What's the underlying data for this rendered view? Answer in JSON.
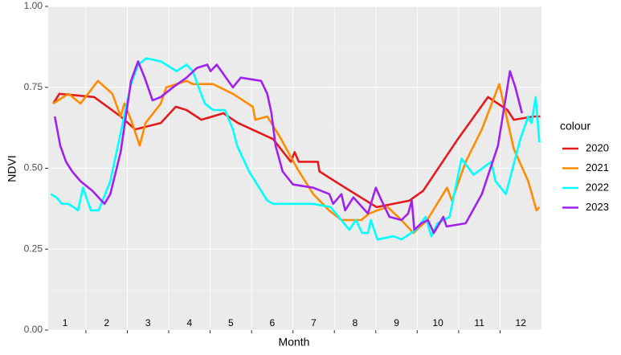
{
  "chart_data": {
    "type": "line",
    "x_label": "Month",
    "y_label": "NDVI",
    "legend_title": "colour",
    "legend": "right",
    "grid": true,
    "xlim": [
      0.59,
      12.5
    ],
    "ylim": [
      0,
      1
    ],
    "yticks": [
      {
        "value": 0,
        "label": "0.00"
      },
      {
        "value": 0.25,
        "label": "0.25"
      },
      {
        "value": 0.5,
        "label": "0.50"
      },
      {
        "value": 0.75,
        "label": "0.75"
      },
      {
        "value": 1,
        "label": "1.00"
      }
    ],
    "month_labels": [
      {
        "value": 1,
        "label": "1"
      },
      {
        "value": 2,
        "label": "2"
      },
      {
        "value": 3,
        "label": "3"
      },
      {
        "value": 4,
        "label": "4"
      },
      {
        "value": 5,
        "label": "5"
      },
      {
        "value": 6,
        "label": "6"
      },
      {
        "value": 7,
        "label": "7"
      },
      {
        "value": 8,
        "label": "8"
      },
      {
        "value": 9,
        "label": "9"
      },
      {
        "value": 10,
        "label": "10"
      },
      {
        "value": 11,
        "label": "11"
      },
      {
        "value": 12,
        "label": "12"
      }
    ],
    "series": [
      {
        "name": "2020",
        "color": "#e41a1c",
        "x": [
          0.71,
          0.86,
          1.7,
          2.34,
          2.69,
          3.31,
          3.67,
          3.93,
          4.29,
          4.82,
          5.17,
          6.02,
          6.45,
          6.54,
          6.64,
          7.1,
          7.14,
          7.76,
          8.52,
          9.31,
          9.64,
          10.48,
          11.21,
          11.68,
          11.83,
          12.32,
          12.47
        ],
        "values": [
          0.7,
          0.73,
          0.72,
          0.66,
          0.62,
          0.64,
          0.69,
          0.68,
          0.65,
          0.67,
          0.64,
          0.59,
          0.52,
          0.55,
          0.52,
          0.52,
          0.49,
          0.44,
          0.38,
          0.4,
          0.43,
          0.59,
          0.72,
          0.68,
          0.65,
          0.66,
          0.66
        ]
      },
      {
        "name": "2021",
        "color": "#ff8c00",
        "x": [
          0.71,
          1.08,
          1.37,
          1.79,
          2.14,
          2.34,
          2.43,
          2.59,
          2.8,
          2.94,
          3.31,
          3.44,
          3.93,
          4.08,
          4.37,
          4.57,
          5.05,
          5.53,
          5.59,
          5.88,
          6.17,
          6.6,
          6.99,
          7.37,
          7.67,
          7.86,
          8.15,
          8.34,
          8.54,
          8.79,
          9.12,
          9.41,
          9.74,
          10.22,
          10.34,
          10.67,
          11.06,
          11.48,
          11.83,
          12.18,
          12.38,
          12.45
        ],
        "values": [
          0.7,
          0.73,
          0.7,
          0.77,
          0.73,
          0.66,
          0.7,
          0.65,
          0.57,
          0.64,
          0.7,
          0.75,
          0.77,
          0.76,
          0.76,
          0.76,
          0.73,
          0.69,
          0.65,
          0.66,
          0.6,
          0.5,
          0.42,
          0.37,
          0.34,
          0.34,
          0.34,
          0.36,
          0.37,
          0.38,
          0.34,
          0.3,
          0.34,
          0.44,
          0.4,
          0.52,
          0.62,
          0.76,
          0.56,
          0.46,
          0.37,
          0.38
        ]
      },
      {
        "name": "2022",
        "color": "#00ffff",
        "x": [
          0.65,
          0.79,
          0.92,
          1.08,
          1.31,
          1.43,
          1.62,
          1.81,
          2.09,
          2.34,
          2.59,
          2.76,
          2.96,
          3.31,
          3.69,
          3.93,
          4.08,
          4.37,
          4.57,
          4.86,
          5.05,
          5.15,
          5.44,
          5.88,
          6.02,
          6.99,
          7.41,
          7.86,
          8.02,
          8.17,
          8.31,
          8.38,
          8.54,
          8.93,
          9.12,
          9.47,
          9.7,
          9.84,
          9.99,
          10.28,
          10.57,
          10.86,
          11.29,
          11.39,
          11.64,
          11.99,
          12.18,
          12.26,
          12.36,
          12.45
        ],
        "values": [
          0.42,
          0.41,
          0.39,
          0.39,
          0.37,
          0.44,
          0.37,
          0.37,
          0.46,
          0.61,
          0.76,
          0.82,
          0.84,
          0.83,
          0.8,
          0.82,
          0.8,
          0.7,
          0.68,
          0.68,
          0.62,
          0.57,
          0.49,
          0.4,
          0.39,
          0.39,
          0.38,
          0.31,
          0.34,
          0.3,
          0.3,
          0.34,
          0.28,
          0.29,
          0.28,
          0.31,
          0.35,
          0.29,
          0.33,
          0.35,
          0.53,
          0.48,
          0.52,
          0.46,
          0.42,
          0.59,
          0.66,
          0.64,
          0.72,
          0.58
        ]
      },
      {
        "name": "2023",
        "color": "#a020f0",
        "x": [
          0.75,
          0.88,
          1.02,
          1.17,
          1.37,
          1.66,
          1.95,
          2.09,
          2.34,
          2.59,
          2.76,
          2.92,
          3.11,
          3.31,
          3.6,
          3.93,
          4.18,
          4.43,
          4.51,
          4.66,
          5.05,
          5.24,
          5.73,
          5.88,
          5.98,
          6.08,
          6.25,
          6.5,
          6.99,
          7.38,
          7.47,
          7.67,
          7.76,
          7.96,
          8.31,
          8.5,
          8.64,
          8.83,
          9.12,
          9.28,
          9.37,
          9.43,
          9.6,
          9.76,
          9.9,
          10.13,
          10.21,
          10.67,
          11.06,
          11.45,
          11.74,
          11.87,
          12.03
        ],
        "values": [
          0.66,
          0.57,
          0.52,
          0.49,
          0.46,
          0.43,
          0.39,
          0.42,
          0.55,
          0.77,
          0.83,
          0.78,
          0.71,
          0.72,
          0.75,
          0.78,
          0.81,
          0.82,
          0.8,
          0.82,
          0.75,
          0.78,
          0.77,
          0.73,
          0.67,
          0.57,
          0.49,
          0.45,
          0.44,
          0.42,
          0.39,
          0.42,
          0.37,
          0.41,
          0.36,
          0.44,
          0.4,
          0.35,
          0.34,
          0.36,
          0.4,
          0.31,
          0.33,
          0.34,
          0.3,
          0.35,
          0.32,
          0.33,
          0.42,
          0.57,
          0.8,
          0.75,
          0.67
        ]
      }
    ]
  }
}
